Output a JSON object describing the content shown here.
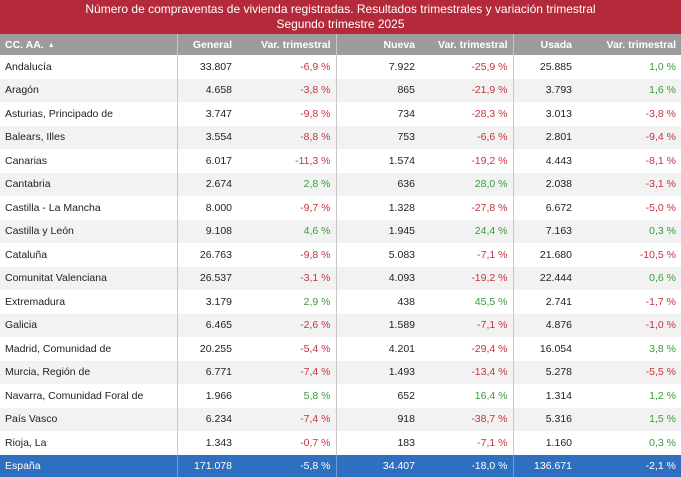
{
  "title": {
    "line1": "Número de compraventas de vivienda registradas. Resultados trimestrales  y variación trimestral",
    "line2": "Segundo trimestre 2025"
  },
  "colors": {
    "header_bg": "#b52a3a",
    "column_header_bg": "#9c9c9c",
    "total_bg": "#2f6fc0",
    "negative": "#c8323c",
    "positive": "#3a9a3a"
  },
  "columns": [
    "CC. AA.",
    "General",
    "Var. trimestral",
    "Nueva",
    "Var. trimestral",
    "Usada",
    "Var. trimestral"
  ],
  "sort_icon": "sort-ascending-icon",
  "rows": [
    {
      "region": "Andalucía",
      "general": "33.807",
      "var_general": "-6,9 %",
      "nueva": "7.922",
      "var_nueva": "-25,9 %",
      "usada": "25.885",
      "var_usada": "1,0 %"
    },
    {
      "region": "Aragón",
      "general": "4.658",
      "var_general": "-3,8 %",
      "nueva": "865",
      "var_nueva": "-21,9 %",
      "usada": "3.793",
      "var_usada": "1,6 %"
    },
    {
      "region": "Asturias, Principado de",
      "general": "3.747",
      "var_general": "-9,8 %",
      "nueva": "734",
      "var_nueva": "-28,3 %",
      "usada": "3.013",
      "var_usada": "-3,8 %"
    },
    {
      "region": "Balears, Illes",
      "general": "3.554",
      "var_general": "-8,8 %",
      "nueva": "753",
      "var_nueva": "-6,6 %",
      "usada": "2.801",
      "var_usada": "-9,4 %"
    },
    {
      "region": "Canarias",
      "general": "6.017",
      "var_general": "-11,3 %",
      "nueva": "1.574",
      "var_nueva": "-19,2 %",
      "usada": "4.443",
      "var_usada": "-8,1 %"
    },
    {
      "region": "Cantabria",
      "general": "2.674",
      "var_general": "2,8 %",
      "nueva": "636",
      "var_nueva": "28,0 %",
      "usada": "2.038",
      "var_usada": "-3,1 %"
    },
    {
      "region": "Castilla - La Mancha",
      "general": "8.000",
      "var_general": "-9,7 %",
      "nueva": "1.328",
      "var_nueva": "-27,8 %",
      "usada": "6.672",
      "var_usada": "-5,0 %"
    },
    {
      "region": "Castilla y León",
      "general": "9.108",
      "var_general": "4,6 %",
      "nueva": "1.945",
      "var_nueva": "24,4 %",
      "usada": "7.163",
      "var_usada": "0,3 %"
    },
    {
      "region": "Cataluña",
      "general": "26.763",
      "var_general": "-9,8 %",
      "nueva": "5.083",
      "var_nueva": "-7,1 %",
      "usada": "21.680",
      "var_usada": "-10,5 %"
    },
    {
      "region": "Comunitat Valenciana",
      "general": "26.537",
      "var_general": "-3,1 %",
      "nueva": "4.093",
      "var_nueva": "-19,2 %",
      "usada": "22.444",
      "var_usada": "0,6 %"
    },
    {
      "region": "Extremadura",
      "general": "3.179",
      "var_general": "2,9 %",
      "nueva": "438",
      "var_nueva": "45,5 %",
      "usada": "2.741",
      "var_usada": "-1,7 %"
    },
    {
      "region": "Galicia",
      "general": "6.465",
      "var_general": "-2,6 %",
      "nueva": "1.589",
      "var_nueva": "-7,1 %",
      "usada": "4.876",
      "var_usada": "-1,0 %"
    },
    {
      "region": "Madrid, Comunidad de",
      "general": "20.255",
      "var_general": "-5,4 %",
      "nueva": "4.201",
      "var_nueva": "-29,4 %",
      "usada": "16.054",
      "var_usada": "3,8 %"
    },
    {
      "region": "Murcia, Región de",
      "general": "6.771",
      "var_general": "-7,4 %",
      "nueva": "1.493",
      "var_nueva": "-13,4 %",
      "usada": "5.278",
      "var_usada": "-5,5 %"
    },
    {
      "region": "Navarra, Comunidad Foral de",
      "general": "1.966",
      "var_general": "5,8 %",
      "nueva": "652",
      "var_nueva": "16,4 %",
      "usada": "1.314",
      "var_usada": "1,2 %"
    },
    {
      "region": "País Vasco",
      "general": "6.234",
      "var_general": "-7,4 %",
      "nueva": "918",
      "var_nueva": "-38,7 %",
      "usada": "5.316",
      "var_usada": "1,5 %"
    },
    {
      "region": "Rioja, La",
      "general": "1.343",
      "var_general": "-0,7 %",
      "nueva": "183",
      "var_nueva": "-7,1 %",
      "usada": "1.160",
      "var_usada": "0,3 %"
    }
  ],
  "total": {
    "region": "España",
    "general": "171.078",
    "var_general": "-5,8 %",
    "nueva": "34.407",
    "var_nueva": "-18,0 %",
    "usada": "136.671",
    "var_usada": "-2,1 %"
  }
}
